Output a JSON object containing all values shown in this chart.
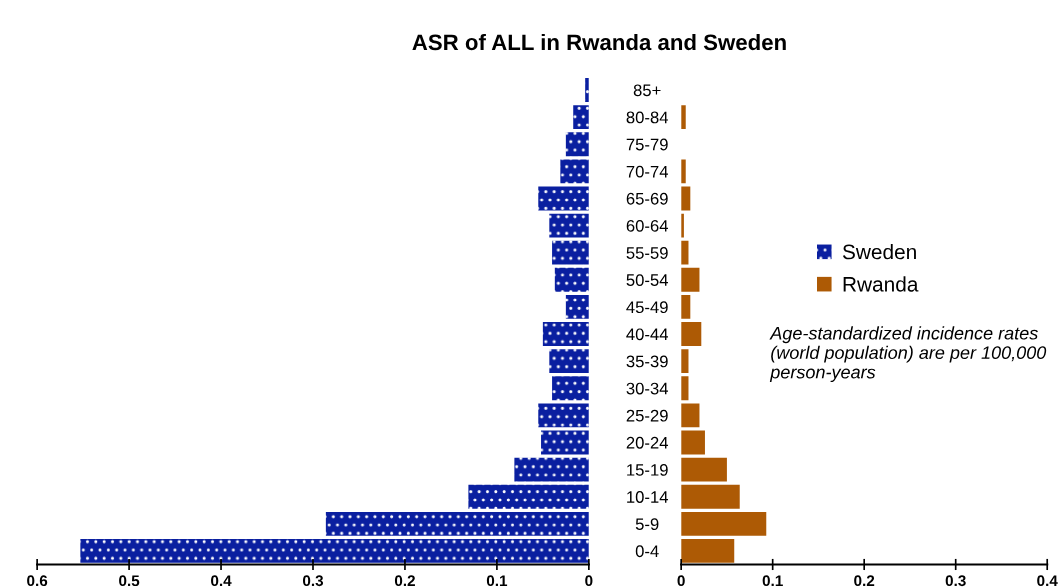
{
  "chart_data": [
    {
      "type": "bar",
      "orientation": "horizontal",
      "title": "ASR of ALL in Rwanda and Sweden",
      "categories": [
        "85+",
        "80-84",
        "75-79",
        "70-74",
        "65-69",
        "60-64",
        "55-59",
        "50-54",
        "45-49",
        "40-44",
        "35-39",
        "30-34",
        "25-29",
        "20-24",
        "15-19",
        "10-14",
        "5-9",
        "0-4"
      ],
      "series": [
        {
          "name": "Sweden",
          "color": "#0a1fa0",
          "values": [
            0.004,
            0.017,
            0.025,
            0.031,
            0.055,
            0.043,
            0.04,
            0.037,
            0.025,
            0.05,
            0.043,
            0.04,
            0.055,
            0.052,
            0.081,
            0.131,
            0.286,
            0.553
          ]
        }
      ],
      "xlim": [
        0.6,
        0
      ],
      "xticks": [
        0.6,
        0.5,
        0.4,
        0.3,
        0.2,
        0.1,
        0
      ],
      "grid": false,
      "legend": "right"
    },
    {
      "type": "bar",
      "orientation": "horizontal",
      "categories": [
        null,
        null,
        null,
        null,
        null,
        null,
        null,
        null,
        null,
        null,
        null,
        null,
        null,
        null,
        null,
        null,
        null,
        null
      ],
      "series": [
        {
          "name": "Rwanda",
          "color": "#ad5a05",
          "values": [
            0,
            0.005,
            0,
            0.005,
            0.01,
            0.003,
            0.008,
            0.02,
            0.01,
            0.022,
            0.008,
            0.008,
            0.02,
            0.026,
            0.05,
            0.064,
            0.093,
            0.058
          ]
        }
      ],
      "xlim": [
        0,
        0.4
      ],
      "xticks": [
        0,
        0.1,
        0.2,
        0.3,
        0.4
      ],
      "tick_labels": "x",
      "grid": false,
      "legend": "right",
      "annotations": [
        "Age-standardized incidence rates (world population) are per 100,000 person-years"
      ]
    }
  ]
}
